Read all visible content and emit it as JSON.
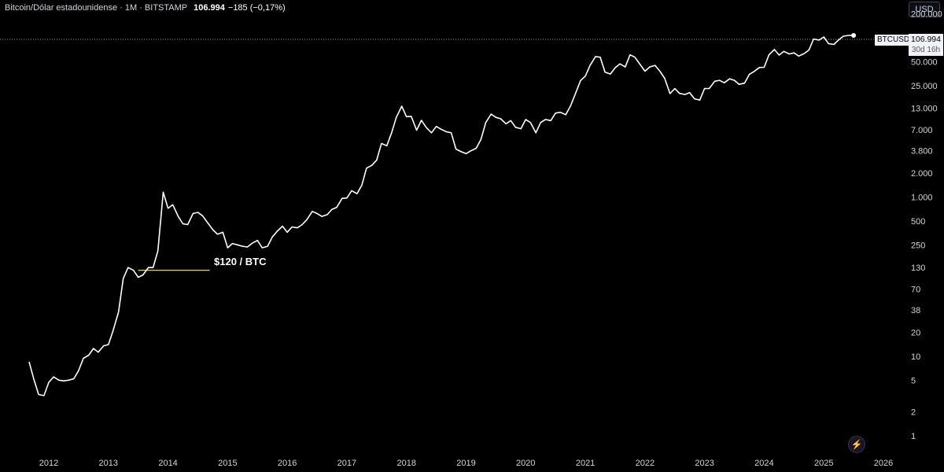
{
  "header": {
    "symbol_name": "Bitcoin/Dólar estadounidense · 1M · BITSTAMP",
    "last": "106.994",
    "change": "−185 (−0,17%)"
  },
  "currency_button": "USD",
  "price_tag": {
    "symbol": "BTCUSD",
    "value": "106.994",
    "countdown": "30d 16h"
  },
  "annotation": {
    "label": "$120 / BTC",
    "value": 120,
    "from": 2013.5,
    "to": 2014.7,
    "color": "#f0c040"
  },
  "colors": {
    "line": "#ffffff",
    "background": "#000000",
    "text": "#d1d4dc",
    "annotation": "#f0c040"
  },
  "chart_data": {
    "type": "line",
    "yscale": "log",
    "title": "Bitcoin/Dólar estadounidense · 1M · BITSTAMP",
    "xlabel": "",
    "ylabel": "",
    "xlim": [
      2011.55,
      2026.1
    ],
    "ylim": [
      0.8,
      200000
    ],
    "x_ticks": [
      2012,
      2013,
      2014,
      2015,
      2016,
      2017,
      2018,
      2019,
      2020,
      2021,
      2022,
      2023,
      2024,
      2025,
      2026
    ],
    "y_ticks": [
      200000,
      100000,
      50000,
      25000,
      13000,
      7000,
      3800,
      2000,
      1000,
      500,
      250,
      130,
      70,
      38,
      20,
      10,
      5,
      2,
      1
    ],
    "y_tick_labels": [
      "200.000",
      "100.000",
      "50.000",
      "25.000",
      "13.000",
      "7.000",
      "3.800",
      "2.000",
      "1.000",
      "500",
      "250",
      "130",
      "70",
      "38",
      "20",
      "10",
      "5",
      "2",
      "1"
    ],
    "series": [
      {
        "x": [
          2011.67,
          2011.75,
          2011.83,
          2011.92,
          2012.0,
          2012.08,
          2012.17,
          2012.25,
          2012.33,
          2012.42,
          2012.5,
          2012.58,
          2012.67,
          2012.75,
          2012.83,
          2012.92,
          2013.0,
          2013.08,
          2013.17,
          2013.25,
          2013.33,
          2013.42,
          2013.5,
          2013.58,
          2013.67,
          2013.75,
          2013.83,
          2013.92,
          2014.0,
          2014.08,
          2014.17,
          2014.25,
          2014.33,
          2014.42,
          2014.5,
          2014.58,
          2014.67,
          2014.75,
          2014.83,
          2014.92,
          2015.0,
          2015.08,
          2015.17,
          2015.25,
          2015.33,
          2015.42,
          2015.5,
          2015.58,
          2015.67,
          2015.75,
          2015.83,
          2015.92,
          2016.0,
          2016.08,
          2016.17,
          2016.25,
          2016.33,
          2016.42,
          2016.5,
          2016.58,
          2016.67,
          2016.75,
          2016.83,
          2016.92,
          2017.0,
          2017.08,
          2017.17,
          2017.25,
          2017.33,
          2017.42,
          2017.5,
          2017.58,
          2017.67,
          2017.75,
          2017.83,
          2017.92,
          2018.0,
          2018.08,
          2018.17,
          2018.25,
          2018.33,
          2018.42,
          2018.5,
          2018.58,
          2018.67,
          2018.75,
          2018.83,
          2018.92,
          2019.0,
          2019.08,
          2019.17,
          2019.25,
          2019.33,
          2019.42,
          2019.5,
          2019.58,
          2019.67,
          2019.75,
          2019.83,
          2019.92,
          2020.0,
          2020.08,
          2020.17,
          2020.25,
          2020.33,
          2020.42,
          2020.5,
          2020.58,
          2020.67,
          2020.75,
          2020.83,
          2020.92,
          2021.0,
          2021.08,
          2021.17,
          2021.25,
          2021.33,
          2021.42,
          2021.5,
          2021.58,
          2021.67,
          2021.75,
          2021.83,
          2021.92,
          2022.0,
          2022.08,
          2022.17,
          2022.25,
          2022.33,
          2022.42,
          2022.5,
          2022.58,
          2022.67,
          2022.75,
          2022.83,
          2022.92,
          2023.0,
          2023.08,
          2023.17,
          2023.25,
          2023.33,
          2023.42,
          2023.5,
          2023.58,
          2023.67,
          2023.75,
          2023.83,
          2023.92,
          2024.0,
          2024.08,
          2024.17,
          2024.25,
          2024.33,
          2024.42,
          2024.5,
          2024.58,
          2024.67,
          2024.75,
          2024.83,
          2024.92,
          2025.0,
          2025.08,
          2025.17,
          2025.25,
          2025.33,
          2025.42,
          2025.5
        ],
        "y": [
          8.5,
          5.1,
          3.3,
          3.2,
          4.7,
          5.5,
          5.0,
          4.9,
          5.0,
          5.2,
          6.6,
          9.4,
          10.3,
          12.5,
          11.2,
          13.5,
          14.0,
          21,
          36,
          95,
          130,
          120,
          98,
          105,
          130,
          130,
          210,
          1150,
          720,
          800,
          570,
          460,
          450,
          620,
          640,
          580,
          470,
          390,
          340,
          360,
          230,
          260,
          250,
          240,
          235,
          265,
          285,
          230,
          240,
          315,
          370,
          430,
          360,
          420,
          410,
          450,
          520,
          660,
          620,
          570,
          600,
          700,
          740,
          960,
          970,
          1200,
          1100,
          1400,
          2300,
          2500,
          2900,
          4700,
          4400,
          6400,
          10000,
          13800,
          10200,
          10300,
          6900,
          9200,
          7500,
          6400,
          7700,
          7100,
          6600,
          6400,
          4000,
          3700,
          3500,
          3800,
          4100,
          5300,
          8600,
          11000,
          10000,
          9600,
          8300,
          9100,
          7500,
          7200,
          9400,
          8600,
          6400,
          8600,
          9400,
          9100,
          11300,
          11600,
          10800,
          13800,
          19500,
          29000,
          33000,
          45000,
          58000,
          57000,
          37000,
          35000,
          42000,
          47000,
          43000,
          61000,
          57000,
          46000,
          38000,
          43000,
          45000,
          38000,
          31000,
          19900,
          23000,
          20000,
          19400,
          20500,
          17100,
          16500,
          23000,
          23100,
          28400,
          29200,
          27200,
          30500,
          29200,
          26000,
          26900,
          34600,
          37700,
          42300,
          42600,
          61100,
          71300,
          60600,
          67500,
          62600,
          64600,
          58900,
          63300,
          70200,
          96400,
          93400,
          102400,
          84300,
          82500,
          94200,
          104600,
          107000,
          106994
        ]
      }
    ]
  }
}
